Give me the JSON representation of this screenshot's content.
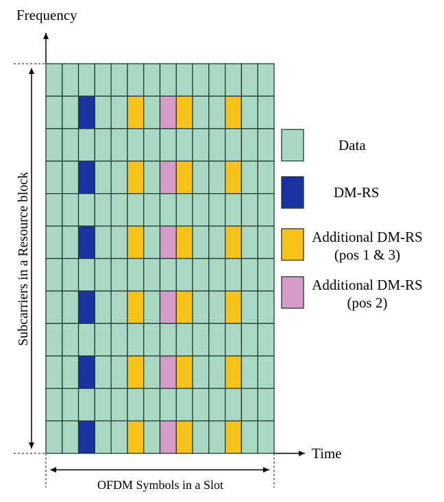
{
  "axes": {
    "frequency_label": "Frequency",
    "time_label": "Time",
    "vertical_span_label": "Subcarriers in a Resource block",
    "horizontal_span_label": "OFDM Symbols in a Slot"
  },
  "grid": {
    "rows": 12,
    "columns": 14,
    "base_type": "data",
    "reference_rows": [
      1,
      3,
      5,
      7,
      9,
      11
    ],
    "reference_columns": [
      {
        "column": 2,
        "type": "dmrs"
      },
      {
        "column": 5,
        "type": "additional_pos13"
      },
      {
        "column": 7,
        "type": "additional_pos2"
      },
      {
        "column": 8,
        "type": "additional_pos13"
      },
      {
        "column": 11,
        "type": "additional_pos13"
      }
    ]
  },
  "colors": {
    "data": "#a9d8c3",
    "dmrs": "#1a33a3",
    "additional_pos13": "#f7c21b",
    "additional_pos2": "#d79bc9",
    "grid_line": "#1e3b36"
  },
  "legend": [
    {
      "type": "data",
      "line1": "Data",
      "line2": ""
    },
    {
      "type": "dmrs",
      "line1": "DM-RS",
      "line2": ""
    },
    {
      "type": "additional_pos13",
      "line1": "Additional DM-RS",
      "line2": "(pos 1 & 3)"
    },
    {
      "type": "additional_pos2",
      "line1": "Additional DM-RS",
      "line2": "(pos 2)"
    }
  ]
}
